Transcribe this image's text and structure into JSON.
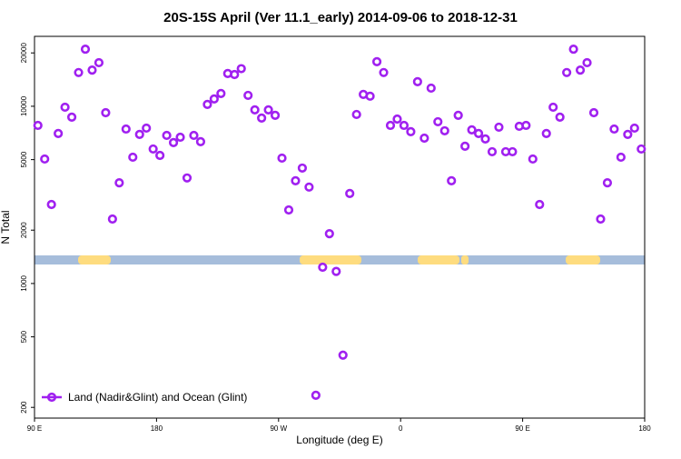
{
  "chart_data": {
    "type": "scatter",
    "title": "20S-15S April (Ver 11.1_early)   2014-09-06 to 2018-12-31",
    "x_label": "Longitude (deg E)",
    "y_label": "N Total",
    "log_y": true,
    "legend_position": "bottomleft",
    "xlim": [
      90,
      540
    ],
    "ylim": [
      174,
      24800
    ],
    "xticks": [
      {
        "value": 90,
        "label": "90 E"
      },
      180,
      {
        "value": 270,
        "label": "90 W"
      },
      {
        "value": 360,
        "label": "0"
      },
      {
        "value": 450,
        "label": "90 E"
      },
      {
        "value": 540,
        "label": "180"
      }
    ],
    "yticks": [
      200,
      500,
      1000,
      2000,
      5000,
      10000,
      20000
    ],
    "series": [
      {
        "name": "Land (Nadir&Glint) and Ocean (Glint)",
        "color": "#a020f0",
        "x": [
          92.5,
          97.5,
          102.5,
          107.5,
          112.5,
          117.5,
          122.5,
          127.5,
          132.5,
          137.5,
          142.5,
          147.5,
          152.5,
          157.5,
          162.5,
          167.5,
          172.5,
          177.5,
          182.5,
          187.5,
          192.5,
          197.5,
          202.5,
          207.5,
          212.5,
          217.5,
          222.5,
          227.5,
          232.5,
          237.5,
          242.5,
          247.5,
          252.5,
          257.5,
          262.5,
          267.5,
          272.5,
          277.5,
          282.5,
          287.5,
          292.5,
          297.5,
          302.5,
          307.5,
          312.5,
          317.5,
          322.5,
          327.5,
          332.5,
          337.5,
          342.5,
          347.5,
          352.5,
          357.5,
          362.5,
          367.5,
          372.5,
          377.5,
          382.5,
          387.5,
          392.5,
          397.5,
          402.5,
          407.5,
          412.5,
          417.5,
          422.5,
          427.5,
          432.5,
          437.5,
          442.5,
          447.5,
          452.5,
          457.5,
          462.5,
          467.5,
          472.5,
          477.5,
          482.5,
          487.5,
          492.5,
          497.5,
          502.5,
          507.5,
          512.5,
          517.5,
          522.5,
          527.5,
          532.5,
          537.5
        ],
        "values": [
          7800,
          5040,
          2790,
          7020,
          9880,
          8680,
          15500,
          21000,
          16000,
          17620,
          9200,
          2310,
          3700,
          7440,
          5160,
          6940,
          7530,
          5740,
          5280,
          6850,
          6240,
          6690,
          3940,
          6850,
          6310,
          10240,
          11000,
          11800,
          15300,
          15100,
          16300,
          11520,
          9540,
          8580,
          9540,
          8890,
          5100,
          2600,
          3800,
          4480,
          3500,
          234,
          1235,
          1910,
          1170,
          394,
          3220,
          8990,
          11660,
          11400,
          17840,
          15500,
          7800,
          8470,
          7800,
          7190,
          13760,
          6610,
          12660,
          8180,
          7270,
          3800,
          8890,
          5950,
          7360,
          7020,
          6540,
          5540,
          7620,
          5540,
          5540,
          7710,
          7800,
          5040,
          2790,
          7020,
          9880,
          8680,
          15500,
          21000,
          16000,
          17620,
          9200,
          2310,
          3700,
          7440,
          5160,
          6940,
          7530,
          5740
        ]
      }
    ]
  }
}
